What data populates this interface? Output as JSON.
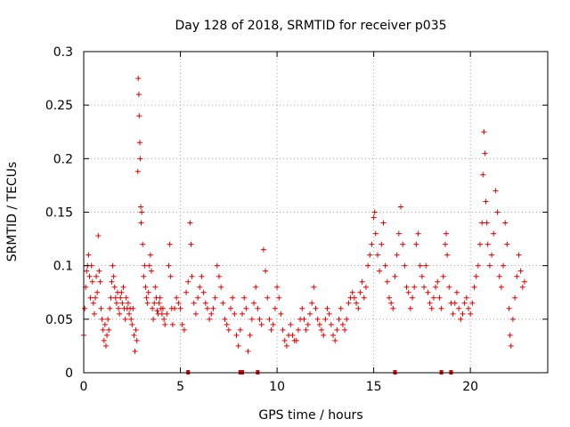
{
  "chart_data": {
    "type": "scatter",
    "title": "Day 128 of 2018, SRMTID for receiver p035",
    "xlabel": "GPS time / hours",
    "ylabel": "SRMTID / TECUs",
    "xlim": [
      0,
      24
    ],
    "ylim": [
      0,
      0.3
    ],
    "xticks": [
      0,
      5,
      10,
      15,
      20
    ],
    "yticks": [
      0,
      0.05,
      0.1,
      0.15,
      0.2,
      0.25,
      0.3
    ],
    "grid": true,
    "series_color": "#e00000",
    "marker": "+",
    "series": [
      {
        "name": "SRMTID",
        "points": [
          [
            0.0,
            0.035
          ],
          [
            0.05,
            0.06
          ],
          [
            0.1,
            0.08
          ],
          [
            0.15,
            0.095
          ],
          [
            0.2,
            0.1
          ],
          [
            0.25,
            0.11
          ],
          [
            0.3,
            0.09
          ],
          [
            0.35,
            0.07
          ],
          [
            0.4,
            0.1
          ],
          [
            0.45,
            0.085
          ],
          [
            0.5,
            0.065
          ],
          [
            0.55,
            0.055
          ],
          [
            0.6,
            0.07
          ],
          [
            0.65,
            0.09
          ],
          [
            0.7,
            0.075
          ],
          [
            0.75,
            0.128
          ],
          [
            0.8,
            0.095
          ],
          [
            0.85,
            0.085
          ],
          [
            0.9,
            0.06
          ],
          [
            0.95,
            0.05
          ],
          [
            1.0,
            0.04
          ],
          [
            1.05,
            0.03
          ],
          [
            1.1,
            0.045
          ],
          [
            1.15,
            0.025
          ],
          [
            1.2,
            0.035
          ],
          [
            1.25,
            0.05
          ],
          [
            1.3,
            0.04
          ],
          [
            1.35,
            0.06
          ],
          [
            1.4,
            0.07
          ],
          [
            1.45,
            0.085
          ],
          [
            1.5,
            0.1
          ],
          [
            1.55,
            0.09
          ],
          [
            1.6,
            0.08
          ],
          [
            1.65,
            0.07
          ],
          [
            1.7,
            0.065
          ],
          [
            1.75,
            0.075
          ],
          [
            1.8,
            0.06
          ],
          [
            1.85,
            0.055
          ],
          [
            1.9,
            0.07
          ],
          [
            1.95,
            0.075
          ],
          [
            2.0,
            0.065
          ],
          [
            2.05,
            0.08
          ],
          [
            2.1,
            0.06
          ],
          [
            2.15,
            0.05
          ],
          [
            2.2,
            0.07
          ],
          [
            2.25,
            0.06
          ],
          [
            2.3,
            0.065
          ],
          [
            2.35,
            0.055
          ],
          [
            2.4,
            0.06
          ],
          [
            2.45,
            0.05
          ],
          [
            2.5,
            0.045
          ],
          [
            2.55,
            0.06
          ],
          [
            2.6,
            0.035
          ],
          [
            2.65,
            0.02
          ],
          [
            2.7,
            0.04
          ],
          [
            2.75,
            0.03
          ],
          [
            2.8,
            0.188
          ],
          [
            2.82,
            0.275
          ],
          [
            2.85,
            0.26
          ],
          [
            2.87,
            0.24
          ],
          [
            2.9,
            0.215
          ],
          [
            2.92,
            0.2
          ],
          [
            2.95,
            0.155
          ],
          [
            2.97,
            0.14
          ],
          [
            3.0,
            0.15
          ],
          [
            3.05,
            0.12
          ],
          [
            3.1,
            0.09
          ],
          [
            3.15,
            0.1
          ],
          [
            3.2,
            0.08
          ],
          [
            3.25,
            0.07
          ],
          [
            3.3,
            0.065
          ],
          [
            3.35,
            0.075
          ],
          [
            3.4,
            0.1
          ],
          [
            3.45,
            0.11
          ],
          [
            3.5,
            0.095
          ],
          [
            3.55,
            0.06
          ],
          [
            3.6,
            0.05
          ],
          [
            3.65,
            0.065
          ],
          [
            3.7,
            0.08
          ],
          [
            3.75,
            0.07
          ],
          [
            3.8,
            0.058
          ],
          [
            3.85,
            0.055
          ],
          [
            3.9,
            0.065
          ],
          [
            3.95,
            0.07
          ],
          [
            4.0,
            0.06
          ],
          [
            4.05,
            0.055
          ],
          [
            4.1,
            0.06
          ],
          [
            4.15,
            0.05
          ],
          [
            4.2,
            0.045
          ],
          [
            4.3,
            0.055
          ],
          [
            4.4,
            0.1
          ],
          [
            4.45,
            0.12
          ],
          [
            4.5,
            0.09
          ],
          [
            4.55,
            0.06
          ],
          [
            4.6,
            0.045
          ],
          [
            4.7,
            0.06
          ],
          [
            4.8,
            0.07
          ],
          [
            4.9,
            0.065
          ],
          [
            5.0,
            0.06
          ],
          [
            5.1,
            0.045
          ],
          [
            5.2,
            0.04
          ],
          [
            5.3,
            0.075
          ],
          [
            5.4,
            0.085
          ],
          [
            5.5,
            0.14
          ],
          [
            5.55,
            0.12
          ],
          [
            5.6,
            0.09
          ],
          [
            5.7,
            0.065
          ],
          [
            5.8,
            0.055
          ],
          [
            5.9,
            0.07
          ],
          [
            6.0,
            0.08
          ],
          [
            6.1,
            0.09
          ],
          [
            6.2,
            0.075
          ],
          [
            6.3,
            0.065
          ],
          [
            6.4,
            0.06
          ],
          [
            6.5,
            0.05
          ],
          [
            6.6,
            0.055
          ],
          [
            6.7,
            0.06
          ],
          [
            6.8,
            0.07
          ],
          [
            6.9,
            0.1
          ],
          [
            7.0,
            0.09
          ],
          [
            7.1,
            0.08
          ],
          [
            7.2,
            0.065
          ],
          [
            7.3,
            0.05
          ],
          [
            7.4,
            0.045
          ],
          [
            7.5,
            0.04
          ],
          [
            7.6,
            0.06
          ],
          [
            7.7,
            0.07
          ],
          [
            7.8,
            0.055
          ],
          [
            7.9,
            0.035
          ],
          [
            8.0,
            0.025
          ],
          [
            8.1,
            0.04
          ],
          [
            8.2,
            0.055
          ],
          [
            8.3,
            0.07
          ],
          [
            8.4,
            0.06
          ],
          [
            8.5,
            0.02
          ],
          [
            8.6,
            0.035
          ],
          [
            8.7,
            0.05
          ],
          [
            8.8,
            0.065
          ],
          [
            8.9,
            0.08
          ],
          [
            9.0,
            0.06
          ],
          [
            9.1,
            0.05
          ],
          [
            9.2,
            0.045
          ],
          [
            9.3,
            0.115
          ],
          [
            9.4,
            0.095
          ],
          [
            9.5,
            0.07
          ],
          [
            9.6,
            0.05
          ],
          [
            9.7,
            0.04
          ],
          [
            9.8,
            0.045
          ],
          [
            9.9,
            0.06
          ],
          [
            10.0,
            0.08
          ],
          [
            10.1,
            0.07
          ],
          [
            10.2,
            0.055
          ],
          [
            10.3,
            0.04
          ],
          [
            10.4,
            0.03
          ],
          [
            10.5,
            0.025
          ],
          [
            10.6,
            0.035
          ],
          [
            10.7,
            0.045
          ],
          [
            10.8,
            0.035
          ],
          [
            10.9,
            0.03
          ],
          [
            11.0,
            0.03
          ],
          [
            11.1,
            0.04
          ],
          [
            11.2,
            0.05
          ],
          [
            11.3,
            0.06
          ],
          [
            11.4,
            0.05
          ],
          [
            11.5,
            0.04
          ],
          [
            11.6,
            0.045
          ],
          [
            11.7,
            0.055
          ],
          [
            11.8,
            0.065
          ],
          [
            11.9,
            0.08
          ],
          [
            12.0,
            0.06
          ],
          [
            12.1,
            0.05
          ],
          [
            12.2,
            0.045
          ],
          [
            12.3,
            0.04
          ],
          [
            12.4,
            0.035
          ],
          [
            12.5,
            0.05
          ],
          [
            12.6,
            0.06
          ],
          [
            12.7,
            0.055
          ],
          [
            12.8,
            0.045
          ],
          [
            12.9,
            0.035
          ],
          [
            13.0,
            0.03
          ],
          [
            13.1,
            0.04
          ],
          [
            13.2,
            0.05
          ],
          [
            13.3,
            0.06
          ],
          [
            13.4,
            0.045
          ],
          [
            13.5,
            0.04
          ],
          [
            13.6,
            0.05
          ],
          [
            13.7,
            0.065
          ],
          [
            13.8,
            0.07
          ],
          [
            13.9,
            0.075
          ],
          [
            14.0,
            0.07
          ],
          [
            14.1,
            0.065
          ],
          [
            14.2,
            0.06
          ],
          [
            14.3,
            0.075
          ],
          [
            14.4,
            0.085
          ],
          [
            14.5,
            0.07
          ],
          [
            14.6,
            0.08
          ],
          [
            14.7,
            0.1
          ],
          [
            14.8,
            0.11
          ],
          [
            14.9,
            0.12
          ],
          [
            15.0,
            0.145
          ],
          [
            15.05,
            0.15
          ],
          [
            15.1,
            0.13
          ],
          [
            15.2,
            0.11
          ],
          [
            15.3,
            0.095
          ],
          [
            15.4,
            0.12
          ],
          [
            15.5,
            0.14
          ],
          [
            15.6,
            0.1
          ],
          [
            15.7,
            0.085
          ],
          [
            15.8,
            0.07
          ],
          [
            15.9,
            0.065
          ],
          [
            16.0,
            0.06
          ],
          [
            16.1,
            0.09
          ],
          [
            16.2,
            0.11
          ],
          [
            16.3,
            0.13
          ],
          [
            16.4,
            0.155
          ],
          [
            16.5,
            0.12
          ],
          [
            16.6,
            0.1
          ],
          [
            16.7,
            0.08
          ],
          [
            16.8,
            0.075
          ],
          [
            16.9,
            0.06
          ],
          [
            17.0,
            0.07
          ],
          [
            17.1,
            0.08
          ],
          [
            17.2,
            0.12
          ],
          [
            17.3,
            0.13
          ],
          [
            17.4,
            0.1
          ],
          [
            17.5,
            0.09
          ],
          [
            17.6,
            0.08
          ],
          [
            17.7,
            0.1
          ],
          [
            17.8,
            0.075
          ],
          [
            17.9,
            0.065
          ],
          [
            18.0,
            0.06
          ],
          [
            18.1,
            0.07
          ],
          [
            18.2,
            0.08
          ],
          [
            18.3,
            0.085
          ],
          [
            18.4,
            0.07
          ],
          [
            18.5,
            0.06
          ],
          [
            18.6,
            0.09
          ],
          [
            18.7,
            0.12
          ],
          [
            18.75,
            0.13
          ],
          [
            18.8,
            0.11
          ],
          [
            18.9,
            0.08
          ],
          [
            19.0,
            0.065
          ],
          [
            19.1,
            0.055
          ],
          [
            19.2,
            0.065
          ],
          [
            19.3,
            0.075
          ],
          [
            19.4,
            0.06
          ],
          [
            19.5,
            0.05
          ],
          [
            19.6,
            0.055
          ],
          [
            19.7,
            0.065
          ],
          [
            19.8,
            0.07
          ],
          [
            19.9,
            0.06
          ],
          [
            20.0,
            0.055
          ],
          [
            20.1,
            0.065
          ],
          [
            20.2,
            0.08
          ],
          [
            20.3,
            0.09
          ],
          [
            20.4,
            0.1
          ],
          [
            20.5,
            0.12
          ],
          [
            20.6,
            0.14
          ],
          [
            20.65,
            0.185
          ],
          [
            20.7,
            0.225
          ],
          [
            20.75,
            0.205
          ],
          [
            20.8,
            0.16
          ],
          [
            20.85,
            0.14
          ],
          [
            20.9,
            0.12
          ],
          [
            21.0,
            0.1
          ],
          [
            21.1,
            0.11
          ],
          [
            21.2,
            0.13
          ],
          [
            21.3,
            0.17
          ],
          [
            21.4,
            0.15
          ],
          [
            21.5,
            0.09
          ],
          [
            21.6,
            0.08
          ],
          [
            21.7,
            0.1
          ],
          [
            21.8,
            0.14
          ],
          [
            21.9,
            0.12
          ],
          [
            22.0,
            0.06
          ],
          [
            22.05,
            0.035
          ],
          [
            22.1,
            0.025
          ],
          [
            22.2,
            0.05
          ],
          [
            22.3,
            0.07
          ],
          [
            22.4,
            0.09
          ],
          [
            22.5,
            0.11
          ],
          [
            22.6,
            0.095
          ],
          [
            22.7,
            0.08
          ],
          [
            22.8,
            0.085
          ]
        ]
      }
    ],
    "gap_marks_x": [
      5.4,
      8.1,
      8.2,
      9.0,
      16.1,
      18.5,
      19.0
    ]
  }
}
